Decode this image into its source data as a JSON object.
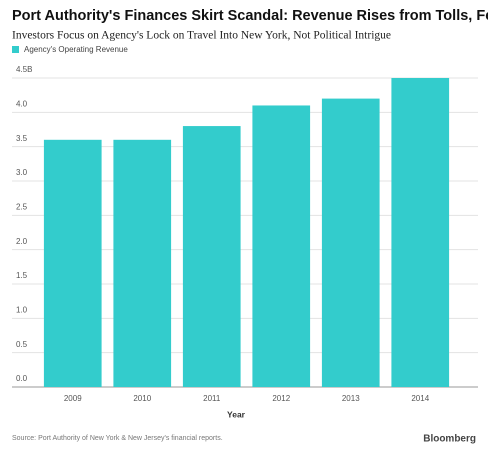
{
  "chart_data": {
    "type": "bar",
    "title": "Port Authority's Finances Skirt Scandal: Revenue Rises from Tolls, Fees",
    "subtitle": "Investors Focus on Agency's Lock on Travel Into New York, Not Political Intrigue",
    "x_label": "Year",
    "categories": [
      "2009",
      "2010",
      "2011",
      "2012",
      "2013",
      "2014"
    ],
    "series": [
      {
        "name": "Agency's Operating Revenue",
        "color": "#33cccc",
        "values": [
          3.6,
          3.6,
          3.8,
          4.1,
          4.2,
          4.5
        ]
      }
    ],
    "ylim": [
      0,
      4.5
    ],
    "yticks": [
      {
        "value": 0,
        "label": "0.0"
      },
      0.5,
      {
        "value": 1,
        "label": "1.0"
      },
      1.5,
      {
        "value": 2,
        "label": "2.0"
      },
      2.5,
      {
        "value": 3,
        "label": "3.0"
      },
      3.5,
      {
        "value": 4,
        "label": "4.0"
      },
      {
        "value": 4.5,
        "label": "4.5B"
      }
    ],
    "grid": true,
    "source": "Source: Port Authority of New York & New Jersey's financial reports.",
    "credit": "Bloomberg"
  }
}
